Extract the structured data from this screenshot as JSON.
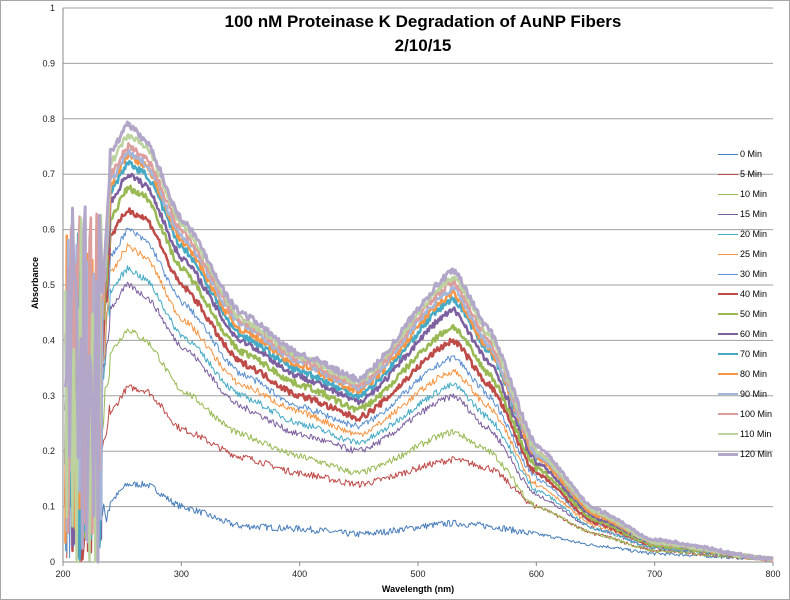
{
  "chart_data": {
    "type": "line",
    "title": "100 nM Proteinase K Degradation of AuNP Fibers",
    "subtitle": "2/10/15",
    "xlabel": "Wavelength (nm)",
    "ylabel": "Absorbance",
    "xlim": [
      200,
      800
    ],
    "ylim": [
      0,
      1
    ],
    "xticks": [
      "200",
      "300",
      "400",
      "500",
      "600",
      "700",
      "800"
    ],
    "yticks": [
      "0",
      "0.1",
      "0.2",
      "0.3",
      "0.4",
      "0.5",
      "0.6",
      "0.7",
      "0.8",
      "0.9",
      "1"
    ],
    "grid": "horizontal",
    "legend": "right",
    "x": [
      240,
      255,
      270,
      300,
      350,
      400,
      450,
      530,
      560,
      600,
      650,
      700,
      800
    ],
    "series": [
      {
        "name": "0 Min",
        "color": "#4A7EBB",
        "width": 1,
        "values": [
          0.11,
          0.14,
          0.14,
          0.1,
          0.065,
          0.06,
          0.05,
          0.07,
          0.065,
          0.05,
          0.03,
          0.015,
          0.005
        ]
      },
      {
        "name": "5 Min",
        "color": "#BE4B48",
        "width": 1,
        "values": [
          0.27,
          0.315,
          0.31,
          0.24,
          0.19,
          0.16,
          0.14,
          0.185,
          0.17,
          0.1,
          0.05,
          0.02,
          0.005
        ]
      },
      {
        "name": "10 Min",
        "color": "#98B954",
        "width": 1,
        "values": [
          0.38,
          0.42,
          0.4,
          0.31,
          0.23,
          0.19,
          0.16,
          0.235,
          0.2,
          0.1,
          0.05,
          0.02,
          0.005
        ]
      },
      {
        "name": "15 Min",
        "color": "#7D60A0",
        "width": 1,
        "values": [
          0.46,
          0.5,
          0.48,
          0.39,
          0.28,
          0.23,
          0.2,
          0.3,
          0.24,
          0.12,
          0.06,
          0.025,
          0.005
        ]
      },
      {
        "name": "20 Min",
        "color": "#46AAC5",
        "width": 1,
        "values": [
          0.49,
          0.53,
          0.51,
          0.41,
          0.3,
          0.25,
          0.215,
          0.32,
          0.26,
          0.13,
          0.06,
          0.025,
          0.005
        ]
      },
      {
        "name": "25 Min",
        "color": "#F69544",
        "width": 1,
        "values": [
          0.52,
          0.57,
          0.55,
          0.44,
          0.32,
          0.27,
          0.23,
          0.345,
          0.28,
          0.14,
          0.065,
          0.03,
          0.005
        ]
      },
      {
        "name": "30 Min",
        "color": "#5B8FD0",
        "width": 1,
        "values": [
          0.55,
          0.6,
          0.58,
          0.47,
          0.34,
          0.28,
          0.245,
          0.37,
          0.3,
          0.15,
          0.07,
          0.03,
          0.005
        ]
      },
      {
        "name": "40 Min",
        "color": "#BE4B48",
        "width": 2.5,
        "values": [
          0.59,
          0.635,
          0.62,
          0.5,
          0.36,
          0.3,
          0.26,
          0.4,
          0.32,
          0.16,
          0.07,
          0.03,
          0.005
        ]
      },
      {
        "name": "50 Min",
        "color": "#98B954",
        "width": 2.5,
        "values": [
          0.62,
          0.675,
          0.66,
          0.53,
          0.38,
          0.32,
          0.275,
          0.425,
          0.34,
          0.17,
          0.075,
          0.03,
          0.005
        ]
      },
      {
        "name": "60 Min",
        "color": "#7D60A0",
        "width": 2.5,
        "values": [
          0.65,
          0.7,
          0.68,
          0.55,
          0.4,
          0.335,
          0.29,
          0.455,
          0.36,
          0.18,
          0.08,
          0.035,
          0.005
        ]
      },
      {
        "name": "70 Min",
        "color": "#46AAC5",
        "width": 2.5,
        "values": [
          0.67,
          0.72,
          0.7,
          0.57,
          0.41,
          0.345,
          0.3,
          0.475,
          0.38,
          0.19,
          0.085,
          0.035,
          0.005
        ]
      },
      {
        "name": "80 Min",
        "color": "#F79646",
        "width": 2.5,
        "values": [
          0.68,
          0.735,
          0.715,
          0.58,
          0.42,
          0.355,
          0.31,
          0.485,
          0.385,
          0.19,
          0.085,
          0.035,
          0.005
        ]
      },
      {
        "name": "90 Min",
        "color": "#A5B6DB",
        "width": 2.5,
        "values": [
          0.69,
          0.74,
          0.72,
          0.59,
          0.43,
          0.36,
          0.315,
          0.495,
          0.39,
          0.195,
          0.09,
          0.035,
          0.005
        ]
      },
      {
        "name": "100 Min",
        "color": "#DC9E9D",
        "width": 2.5,
        "values": [
          0.7,
          0.75,
          0.73,
          0.6,
          0.435,
          0.365,
          0.32,
          0.505,
          0.4,
          0.2,
          0.09,
          0.035,
          0.005
        ]
      },
      {
        "name": "110 Min",
        "color": "#BCD3A0",
        "width": 2.5,
        "values": [
          0.72,
          0.77,
          0.75,
          0.61,
          0.44,
          0.37,
          0.325,
          0.515,
          0.41,
          0.2,
          0.09,
          0.035,
          0.005
        ]
      },
      {
        "name": "120 Min",
        "color": "#B3A7C9",
        "width": 3,
        "values": [
          0.74,
          0.79,
          0.76,
          0.62,
          0.45,
          0.375,
          0.33,
          0.525,
          0.42,
          0.21,
          0.095,
          0.04,
          0.005
        ]
      }
    ]
  }
}
